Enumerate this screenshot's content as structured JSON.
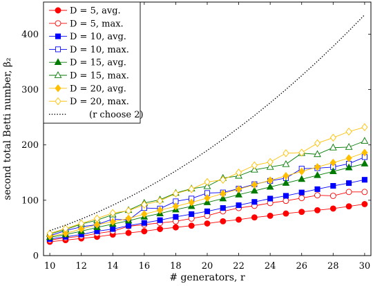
{
  "chart_data": {
    "type": "line",
    "xlabel": "# generators, r",
    "ylabel": "second total Betti number, β₂",
    "xlim": [
      9.6,
      30.4
    ],
    "ylim": [
      0,
      458
    ],
    "x_ticks": [
      "10",
      "12",
      "14",
      "16",
      "18",
      "20",
      "22",
      "24",
      "26",
      "28",
      "30"
    ],
    "y_ticks": [
      "0",
      "100",
      "200",
      "300",
      "400"
    ],
    "grid": false,
    "legend_position": "top-left",
    "x": [
      10,
      11,
      12,
      13,
      14,
      15,
      16,
      17,
      18,
      19,
      20,
      21,
      22,
      23,
      24,
      25,
      26,
      27,
      28,
      29,
      30
    ],
    "series": [
      {
        "name": "D = 5, avg.",
        "color": "#ff0000",
        "marker": "circle",
        "filled": true,
        "dotted": false,
        "values": [
          25,
          28,
          31,
          34,
          38,
          41,
          44,
          48,
          51,
          54,
          58,
          62,
          65,
          69,
          72,
          76,
          79,
          82,
          85,
          89,
          93
        ]
      },
      {
        "name": "D = 5, max.",
        "color": "#ff0000",
        "marker": "circle",
        "filled": false,
        "dotted": false,
        "values": [
          28,
          32,
          35,
          40,
          44,
          53,
          56,
          59,
          62,
          67,
          72,
          80,
          86,
          90,
          95,
          99,
          104,
          109,
          108,
          115,
          115
        ]
      },
      {
        "name": "D = 10, avg.",
        "color": "#0000ff",
        "marker": "square",
        "filled": true,
        "dotted": false,
        "values": [
          30,
          34,
          38,
          44,
          48,
          54,
          59,
          64,
          70,
          75,
          80,
          86,
          91,
          97,
          103,
          108,
          114,
          120,
          126,
          131,
          137
        ]
      },
      {
        "name": "D = 10, max.",
        "color": "#0000ff",
        "marker": "square",
        "filled": false,
        "dotted": false,
        "values": [
          36,
          45,
          52,
          56,
          66,
          64,
          86,
          85,
          98,
          103,
          113,
          114,
          121,
          129,
          135,
          140,
          157,
          158,
          160,
          166,
          178
        ]
      },
      {
        "name": "D = 15, avg.",
        "color": "#007a00",
        "marker": "triangle",
        "filled": true,
        "dotted": false,
        "values": [
          33,
          38,
          44,
          51,
          57,
          63,
          70,
          76,
          83,
          89,
          96,
          103,
          110,
          117,
          124,
          131,
          138,
          145,
          152,
          159,
          166
        ]
      },
      {
        "name": "D = 15, max.",
        "color": "#007a00",
        "marker": "triangle",
        "filled": false,
        "dotted": false,
        "values": [
          39,
          47,
          57,
          64,
          74,
          82,
          95,
          101,
          113,
          121,
          125,
          140,
          144,
          155,
          160,
          165,
          185,
          183,
          195,
          196,
          207
        ]
      },
      {
        "name": "D = 20, avg.",
        "color": "#ffbf00",
        "marker": "diamond",
        "filled": true,
        "dotted": false,
        "values": [
          35,
          40,
          48,
          56,
          61,
          67,
          75,
          82,
          89,
          96,
          104,
          112,
          120,
          128,
          136,
          144,
          152,
          160,
          168,
          176,
          186
        ]
      },
      {
        "name": "D = 20, max.",
        "color": "#ffbf00",
        "marker": "diamond",
        "filled": false,
        "dotted": false,
        "values": [
          40,
          49,
          58,
          67,
          77,
          81,
          92,
          99,
          112,
          120,
          133,
          137,
          150,
          163,
          169,
          185,
          186,
          203,
          213,
          224,
          232
        ]
      },
      {
        "name": "(r choose 2)",
        "color": "#000000",
        "marker": "none",
        "filled": false,
        "dotted": true,
        "values": [
          45,
          55,
          66,
          78,
          91,
          105,
          120,
          136,
          153,
          171,
          190,
          210,
          231,
          253,
          276,
          300,
          325,
          351,
          378,
          406,
          435
        ]
      }
    ]
  }
}
